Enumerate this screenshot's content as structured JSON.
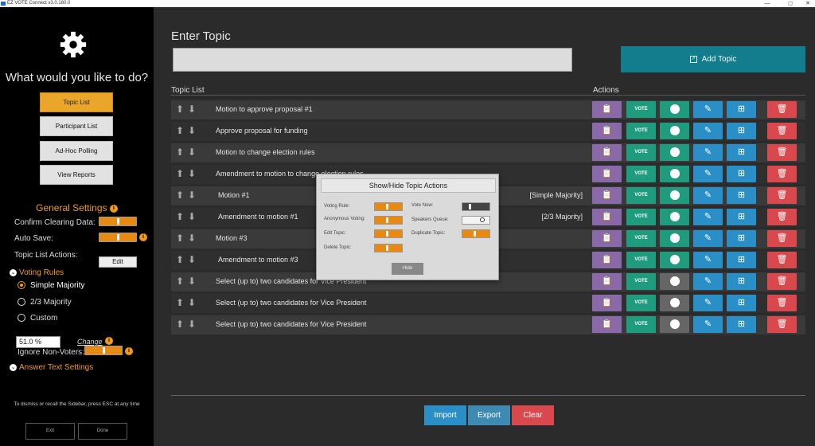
{
  "window": {
    "title": "EZ VOTE Connect v3.0.180.0",
    "minimize": "—",
    "maximize": "◻",
    "close": "✕"
  },
  "sidebar": {
    "heading": "What would you like to do?",
    "nav": [
      "Topic List",
      "Participant List",
      "Ad-Hoc Polling",
      "View Reports"
    ],
    "general_settings": "General Settings",
    "confirm_clearing": "Confirm Clearing Data:",
    "auto_save": "Auto Save:",
    "topic_list_actions": "Topic List Actions:",
    "edit": "Edit",
    "voting_rules": "Voting Rules",
    "rules": [
      "Simple Majority",
      "2/3 Majority",
      "Custom"
    ],
    "selected_rule": "Simple Majority",
    "custom_value": "51.0 %",
    "change": "Change",
    "ignore_non_voters": "Ignore Non-Voters:",
    "answer_text_settings": "Answer Text Settings",
    "hint": "To dismiss or recall the Sidebar, press ESC at any time",
    "exit": "Exit",
    "done": "Done",
    "info_glyph": "i",
    "collapse_glyph": "⌄"
  },
  "main": {
    "enter_topic": "Enter Topic",
    "topic_input_value": "",
    "add_topic": "Add Topic",
    "add_icon_glyph": "↗",
    "topic_list_header": "Topic List",
    "actions_header": "Actions",
    "vote_icon_text": "VOTE",
    "topics": [
      {
        "text": "Motion to approve proposal #1",
        "rule": "",
        "participant_active": true
      },
      {
        "text": "Approve proposal for funding",
        "rule": "",
        "participant_active": true
      },
      {
        "text": "Motion to change election rules",
        "rule": "",
        "participant_active": true
      },
      {
        "text": "Amendment to motion to change election rules",
        "rule": "",
        "participant_active": true
      },
      {
        "text": "Motion #1",
        "rule": "[Simple Majority]",
        "participant_active": true
      },
      {
        "text": "Amendment to motion #1",
        "rule": "[2/3 Majority]",
        "participant_active": true
      },
      {
        "text": "Motion #3",
        "rule": "",
        "participant_active": true
      },
      {
        "text": "Amendment to motion #3",
        "rule": "",
        "participant_active": true
      },
      {
        "text": "Select (up to) two candidates for Vice President",
        "rule": "",
        "participant_active": false
      },
      {
        "text": "Select (up to) two candidates for Vice President",
        "rule": "",
        "participant_active": false
      },
      {
        "text": "Select (up to) two candidates for Vice President",
        "rule": "",
        "participant_active": false
      }
    ],
    "import": "Import",
    "export": "Export",
    "clear": "Clear"
  },
  "modal": {
    "title": "Show/Hide Topic Actions",
    "voting_rule": "Voting Rule:",
    "anonymous_voting": "Anonymous Voting:",
    "edit_topic": "Edit Topic:",
    "delete_topic": "Delete Topic:",
    "vote_now": "Vote Now:",
    "speakers_queue": "Speakers Queue:",
    "duplicate_topic": "Duplicate Topic:",
    "hide": "Hide"
  },
  "colors": {
    "accent": "#f39a1a",
    "teal": "#137d8e",
    "purple": "#8a69a8",
    "green": "#1f9c7e",
    "blue": "#2b8fc7",
    "red": "#d9484d"
  }
}
